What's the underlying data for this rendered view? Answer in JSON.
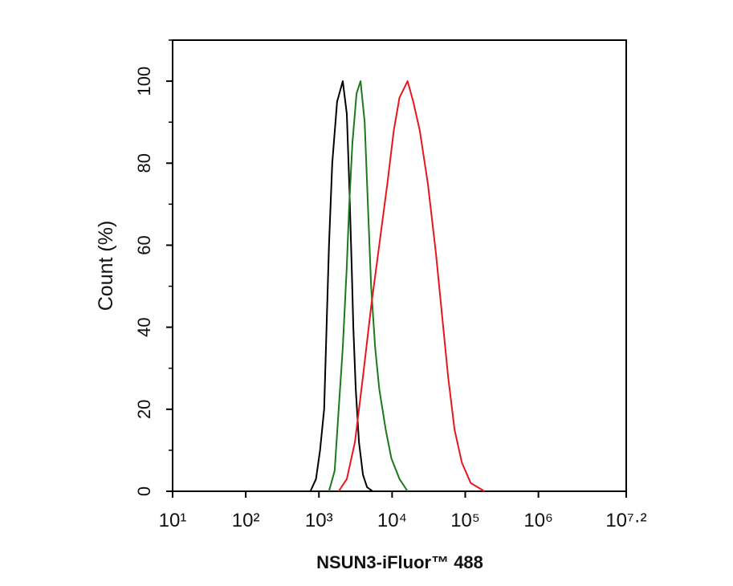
{
  "chart_data": {
    "type": "line",
    "x_label": "NSUN3-iFluor™ 488",
    "y_label": "Count  (%)",
    "xscale": "log",
    "xlim": [
      10,
      15848932
    ],
    "ylim": [
      0,
      110
    ],
    "xticks": [
      {
        "value": 10,
        "label": "10¹"
      },
      {
        "value": 100,
        "label": "10²"
      },
      {
        "value": 1000,
        "label": "10³"
      },
      {
        "value": 10000,
        "label": "10⁴"
      },
      {
        "value": 100000,
        "label": "10⁵"
      },
      {
        "value": 1000000,
        "label": "10⁶"
      },
      {
        "value": 15848932,
        "label": "10⁷·²"
      }
    ],
    "yticks": [
      0,
      20,
      40,
      60,
      80,
      100
    ],
    "yminorticks": [
      10,
      30,
      50,
      70,
      90,
      110
    ],
    "series": [
      {
        "color": "#000000",
        "x": [
          764,
          912,
          1036,
          1178,
          1271,
          1372,
          1520,
          1771,
          2118,
          2405,
          2596,
          2802,
          2951,
          3184,
          3524,
          4000,
          4550,
          5430
        ],
        "values": [
          0,
          3,
          10,
          20,
          40,
          60,
          80,
          95,
          100,
          92,
          75,
          55,
          40,
          25,
          12,
          4,
          1,
          0
        ]
      },
      {
        "color": "#1a7a1a",
        "x": [
          1372,
          1640,
          1862,
          2118,
          2405,
          2596,
          2870,
          3266,
          3707,
          4217,
          4667,
          5164,
          5869,
          6668,
          8185,
          9780,
          12620,
          16290
        ],
        "values": [
          0,
          5,
          20,
          35,
          55,
          70,
          85,
          97,
          100,
          90,
          70,
          50,
          35,
          25,
          15,
          8,
          3,
          0
        ]
      },
      {
        "color": "#e8161b",
        "x": [
          1862,
          2405,
          3105,
          4000,
          5164,
          6668,
          8610,
          10550,
          12620,
          16290,
          19450,
          23870,
          30820,
          39740,
          48750,
          58240,
          71450,
          89800,
          118800,
          183500
        ],
        "values": [
          0,
          3,
          12,
          28,
          45,
          60,
          75,
          88,
          96,
          100,
          95,
          88,
          75,
          58,
          42,
          28,
          15,
          7,
          2,
          0
        ]
      }
    ]
  }
}
